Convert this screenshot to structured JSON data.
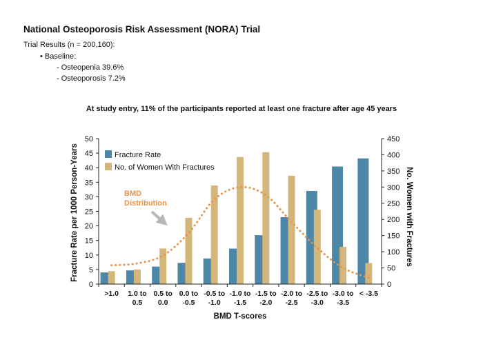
{
  "header": {
    "title": "National Osteoporosis Risk Assessment (NORA) Trial",
    "results_line": "Trial Results (n = 200,160):",
    "baseline_label": "• Baseline:",
    "osteopenia": "- Osteopenia 39.6%",
    "osteoporosis": "- Osteoporosis 7.2%"
  },
  "chart_data": {
    "type": "bar",
    "title": "At study entry, 11% of the participants reported at least one fracture after age 45 years",
    "xlabel": "BMD T-scores",
    "ylabel": "Fracture Rate per 1000 Person-Years",
    "y2label": "No. Women with Fractures",
    "categories": [
      [
        ">1.0"
      ],
      [
        "1.0 to",
        "0.5"
      ],
      [
        "0.5 to",
        "0.0"
      ],
      [
        "0.0 to",
        "-0.5"
      ],
      [
        "-0.5 to",
        "-1.0"
      ],
      [
        "-1.0 to",
        "-1.5"
      ],
      [
        "-1.5 to",
        "-2.0"
      ],
      [
        "-2.0 to",
        "-2.5"
      ],
      [
        "-2.5 to",
        "-3.0"
      ],
      [
        "-3.0 to",
        "-3.5"
      ],
      [
        "< -3.5"
      ]
    ],
    "ylim": [
      0,
      50
    ],
    "y2lim": [
      0,
      450
    ],
    "yticks": [
      0,
      5,
      10,
      15,
      20,
      25,
      30,
      35,
      40,
      45,
      50
    ],
    "y2ticks": [
      0,
      50,
      100,
      150,
      200,
      250,
      300,
      350,
      400,
      450
    ],
    "series": [
      {
        "name": "Fracture Rate",
        "axis": "left",
        "color": "#4d87a8",
        "values": [
          4.0,
          4.7,
          6.0,
          7.3,
          8.8,
          12.2,
          16.8,
          23.0,
          32.0,
          40.4,
          43.2
        ]
      },
      {
        "name": "No. of Women With Fractures",
        "axis": "right",
        "color": "#d4b67a",
        "values": [
          40,
          45,
          110,
          205,
          305,
          393,
          408,
          335,
          230,
          115,
          65
        ]
      }
    ],
    "annotation": {
      "text": [
        "BMD",
        "Distribution"
      ],
      "color": "#e8924a"
    },
    "distribution_curve": {
      "style": "dotted",
      "color": "#e8924a",
      "peak_category": "-1.0 to -1.5",
      "values": [
        58,
        64,
        88,
        158,
        262,
        300,
        275,
        192,
        112,
        50,
        20
      ]
    },
    "legend_position": "top-left",
    "grid": false
  }
}
